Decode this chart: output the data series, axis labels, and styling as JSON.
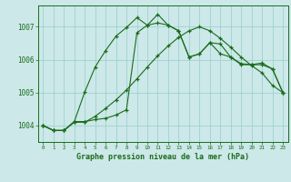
{
  "xlabel": "Graphe pression niveau de la mer (hPa)",
  "hours": [
    0,
    1,
    2,
    3,
    4,
    5,
    6,
    7,
    8,
    9,
    10,
    11,
    12,
    13,
    14,
    15,
    16,
    17,
    18,
    19,
    20,
    21,
    22,
    23
  ],
  "line1": [
    1004.0,
    1003.85,
    1003.85,
    1004.1,
    1004.1,
    1004.28,
    1004.52,
    1004.78,
    1005.08,
    1005.42,
    1005.78,
    1006.12,
    1006.42,
    1006.68,
    1006.88,
    1007.0,
    1006.88,
    1006.65,
    1006.38,
    1006.08,
    1005.82,
    1005.6,
    1005.22,
    1005.0
  ],
  "line2": [
    1004.0,
    1003.85,
    1003.85,
    1004.12,
    1005.02,
    1005.78,
    1006.28,
    1006.72,
    1006.98,
    1007.28,
    1007.05,
    1007.12,
    1007.05,
    1006.88,
    1006.08,
    1006.18,
    1006.52,
    1006.18,
    1006.08,
    1005.88,
    1005.85,
    1005.9,
    1005.72,
    1005.0
  ],
  "line3": [
    1004.0,
    1003.85,
    1003.85,
    1004.12,
    1004.12,
    1004.18,
    1004.22,
    1004.32,
    1004.48,
    1006.82,
    1007.05,
    1007.38,
    1007.05,
    1006.88,
    1006.08,
    1006.18,
    1006.52,
    1006.48,
    1006.08,
    1005.85,
    1005.85,
    1005.85,
    1005.72,
    1005.0
  ],
  "line_color": "#1a6b1a",
  "bg_color": "#cce8e8",
  "grid_color": "#99cccc",
  "text_color": "#1a6b1a",
  "ylim_min": 1003.5,
  "ylim_max": 1007.65,
  "yticks": [
    1004,
    1005,
    1006,
    1007
  ]
}
